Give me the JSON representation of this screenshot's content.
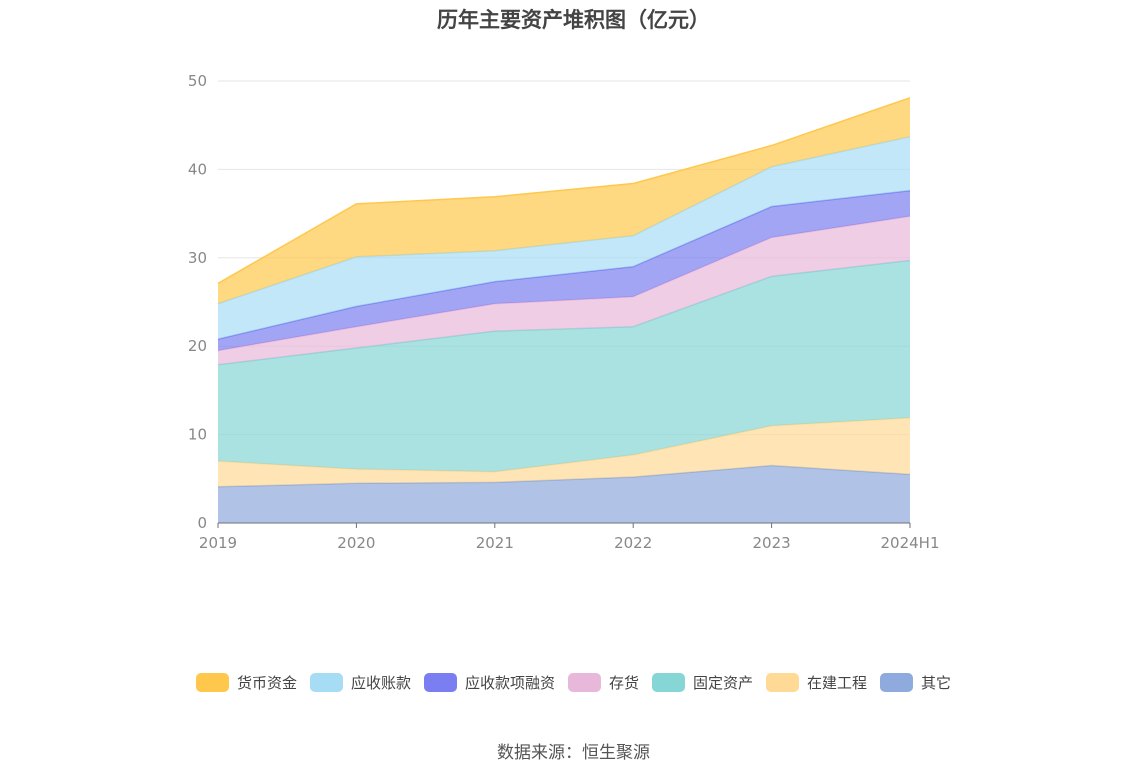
{
  "source_note": "数据来源：恒生聚源",
  "chart_data": {
    "type": "area",
    "stacked": true,
    "title": "历年主要资产堆积图（亿元）",
    "xlabel": "",
    "ylabel": "",
    "categories": [
      "2019",
      "2020",
      "2021",
      "2022",
      "2023",
      "2024H1"
    ],
    "ylim": [
      0,
      50
    ],
    "yticks": [
      0,
      10,
      20,
      30,
      40,
      50
    ],
    "grid": true,
    "legend_position": "bottom",
    "series": [
      {
        "name": "其它",
        "color": "#8faadc",
        "values": [
          4.1,
          4.5,
          4.6,
          5.2,
          6.5,
          5.5
        ]
      },
      {
        "name": "在建工程",
        "color": "#ffd996",
        "values": [
          2.9,
          1.6,
          1.2,
          2.5,
          4.5,
          6.4
        ]
      },
      {
        "name": "固定资产",
        "color": "#86d6d6",
        "values": [
          10.9,
          13.7,
          15.9,
          14.5,
          16.9,
          17.8
        ]
      },
      {
        "name": "存货",
        "color": "#e8b8da",
        "values": [
          1.6,
          2.4,
          3.1,
          3.4,
          4.4,
          5.0
        ]
      },
      {
        "name": "应收款项融资",
        "color": "#7b7ef0",
        "values": [
          1.3,
          2.3,
          2.5,
          3.4,
          3.5,
          2.9
        ]
      },
      {
        "name": "应收账款",
        "color": "#a6ddf5",
        "values": [
          4.0,
          5.6,
          3.5,
          3.5,
          4.5,
          6.1
        ]
      },
      {
        "name": "货币资金",
        "color": "#ffc84d",
        "values": [
          2.3,
          6.0,
          6.1,
          5.9,
          2.4,
          4.4
        ]
      }
    ],
    "legend_order": [
      "货币资金",
      "应收账款",
      "应收款项融资",
      "存货",
      "固定资产",
      "在建工程",
      "其它"
    ]
  }
}
